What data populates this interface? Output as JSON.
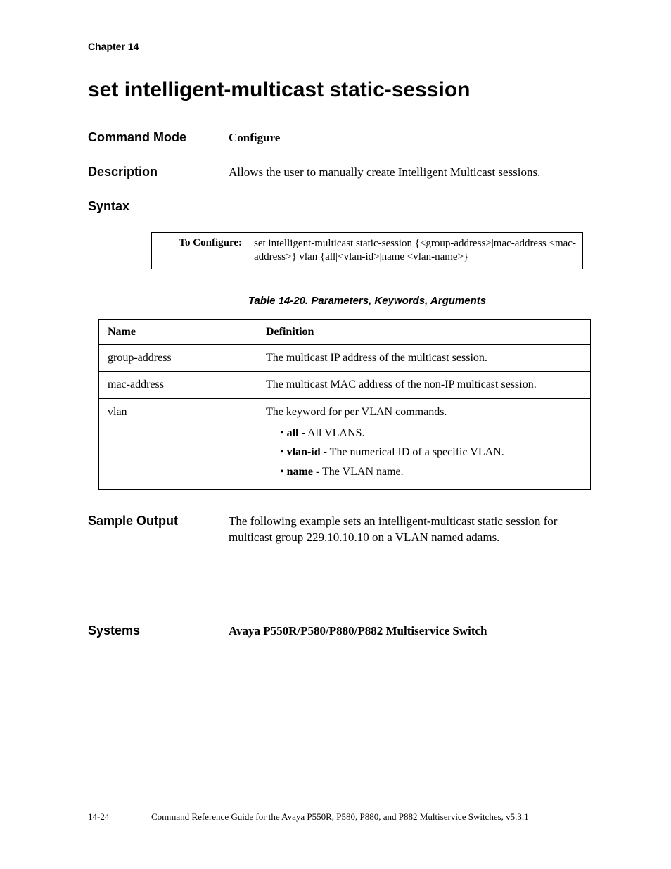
{
  "header": {
    "chapter": "Chapter 14"
  },
  "title": "set intelligent-multicast static-session",
  "command_mode": {
    "label": "Command Mode",
    "value": "Configure"
  },
  "description": {
    "label": "Description",
    "value": "Allows the user to manually create Intelligent Multicast sessions."
  },
  "syntax": {
    "label": "Syntax",
    "rows": [
      {
        "left": "To Configure:",
        "right": "set intelligent-multicast static-session {<group-address>|mac-address <mac-address>} vlan {all|<vlan-id>|name <vlan-name>}"
      }
    ]
  },
  "params_caption": "Table 14-20.  Parameters, Keywords, Arguments",
  "params": {
    "columns": [
      "Name",
      "Definition"
    ],
    "rows": [
      {
        "name": "group-address",
        "definition": "The multicast IP address of the multicast session."
      },
      {
        "name": "mac-address",
        "definition": "The multicast MAC address of the non-IP multicast session."
      },
      {
        "name": "vlan",
        "definition": "The keyword for per VLAN commands.",
        "bullets": [
          {
            "bold": "all",
            "rest": " - All VLANS."
          },
          {
            "bold": "vlan-id",
            "rest": " - The numerical ID of a specific VLAN."
          },
          {
            "bold": "name",
            "rest": " - The VLAN name."
          }
        ]
      }
    ]
  },
  "sample_output": {
    "label": "Sample Output",
    "value": "The following example sets an intelligent-multicast static session for multicast group 229.10.10.10 on a VLAN named adams."
  },
  "systems": {
    "label": "Systems",
    "value": "Avaya P550R/P580/P880/P882 Multiservice Switch"
  },
  "footer": {
    "pagenum": "14-24",
    "text": "Command Reference Guide for the Avaya P550R, P580, P880, and P882 Multiservice Switches, v5.3.1"
  }
}
